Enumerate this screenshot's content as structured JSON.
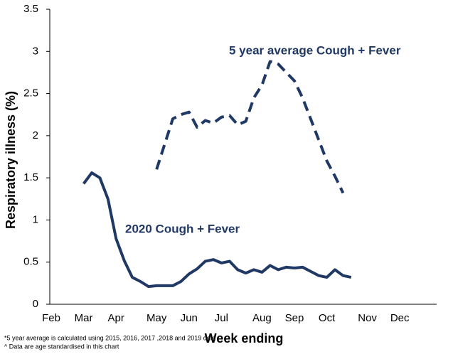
{
  "chart_data": {
    "type": "line",
    "xlabel": "Week ending",
    "ylabel": "Respiratory illness (%)",
    "categories": [
      "Feb",
      null,
      null,
      null,
      "Mar",
      null,
      null,
      null,
      "Apr",
      null,
      null,
      null,
      null,
      "May",
      null,
      null,
      null,
      "Jun",
      null,
      null,
      null,
      "Jul",
      null,
      null,
      null,
      null,
      "Aug",
      null,
      null,
      null,
      "Sep",
      null,
      null,
      null,
      "Oct",
      null,
      null,
      null,
      null,
      "Nov",
      null,
      null,
      null,
      "Dec",
      null,
      null,
      null,
      null
    ],
    "series": [
      {
        "name": "2020 Cough + Fever",
        "color": "#203864",
        "dash": false,
        "values": [
          null,
          null,
          null,
          null,
          1.43,
          1.56,
          1.5,
          1.25,
          0.78,
          0.52,
          0.32,
          0.27,
          0.21,
          0.22,
          0.22,
          0.22,
          0.27,
          0.36,
          0.42,
          0.51,
          0.53,
          0.49,
          0.51,
          0.41,
          0.37,
          0.41,
          0.38,
          0.46,
          0.41,
          0.44,
          0.43,
          0.44,
          0.39,
          0.34,
          0.32,
          0.41,
          0.34,
          0.32,
          null,
          null,
          null,
          null,
          null,
          null,
          null,
          null,
          null,
          null
        ]
      },
      {
        "name": "5 year average Cough + Fever",
        "color": "#203864",
        "dash": true,
        "values": [
          null,
          null,
          null,
          null,
          null,
          null,
          null,
          null,
          null,
          null,
          null,
          null,
          null,
          1.6,
          1.9,
          2.2,
          2.25,
          2.28,
          2.1,
          2.18,
          2.15,
          2.22,
          2.24,
          2.13,
          2.17,
          2.45,
          2.6,
          2.88,
          2.85,
          2.75,
          2.65,
          2.45,
          2.2,
          1.95,
          1.7,
          1.52,
          1.32,
          null,
          null,
          null,
          null,
          null,
          null,
          null,
          null,
          null,
          null,
          null
        ]
      }
    ],
    "ylim": [
      0,
      3.5
    ],
    "yticks": [
      0,
      0.5,
      1,
      1.5,
      2,
      2.5,
      3,
      3.5
    ],
    "footnotes": [
      "*5 year average is calculated using 2015, 2016, 2017 ,2018 and 2019 data",
      "^ Data are age standardised in this chart"
    ]
  }
}
